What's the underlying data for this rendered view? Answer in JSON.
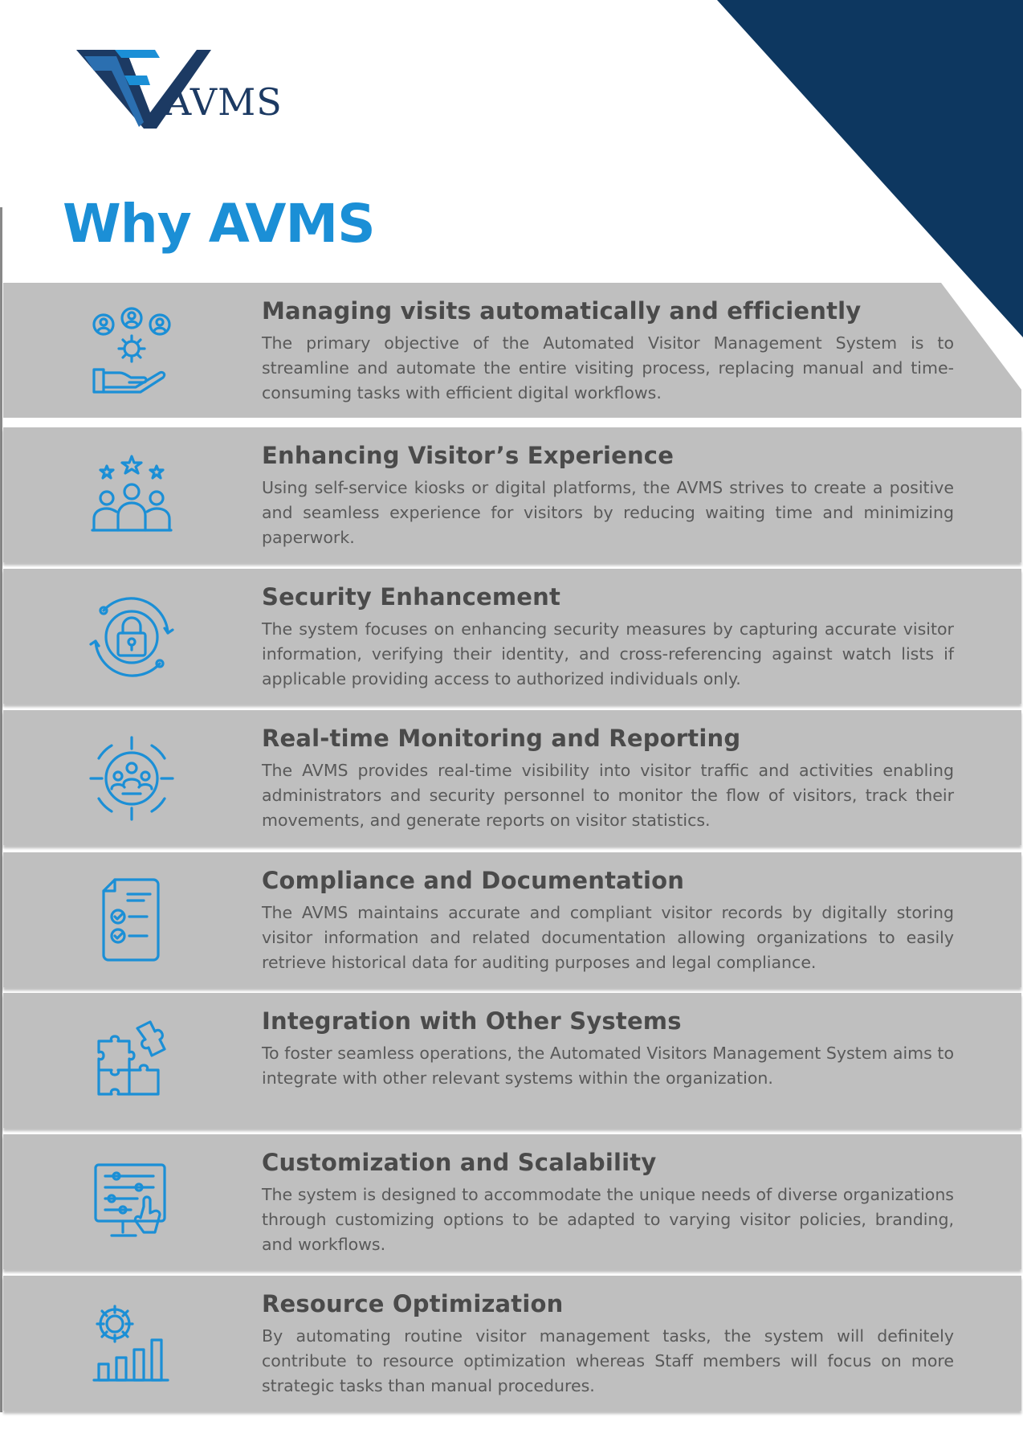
{
  "brand": {
    "logo_text": "AVMS",
    "colors": {
      "navy": "#0d3760",
      "accent_blue": "#1b8fd6",
      "panel_gray": "#bfbfbf"
    }
  },
  "page": {
    "title": "Why AVMS"
  },
  "items": [
    {
      "icon": "users-gear-hand-icon",
      "title": "Managing visits automatically and efficiently",
      "text": "The primary objective of the Automated Visitor Management System is to streamline and automate the entire visiting process, replacing manual and time-consuming tasks with efficient digital workflows."
    },
    {
      "icon": "stars-people-icon",
      "title": "Enhancing Visitor’s Experience",
      "text": "Using self-service kiosks or digital platforms, the AVMS strives to create a positive and seamless experience for visitors by reducing waiting time and minimizing paperwork."
    },
    {
      "icon": "lock-cycle-icon",
      "title": "Security Enhancement",
      "text": "The system focuses on enhancing security measures by capturing accurate visitor information, verifying their identity, and cross-referencing against watch lists if applicable providing access to authorized individuals only."
    },
    {
      "icon": "target-people-icon",
      "title": "Real-time Monitoring and Reporting",
      "text": "The AVMS provides real-time visibility into visitor traffic and activities enabling administrators and security personnel to monitor the flow of visitors, track their movements, and generate reports on visitor statistics."
    },
    {
      "icon": "checklist-document-icon",
      "title": "Compliance and Documentation",
      "text": "The AVMS maintains accurate and compliant visitor records by digitally storing visitor information and related documentation allowing organizations to easily retrieve historical data for auditing purposes and legal compliance."
    },
    {
      "icon": "puzzle-icon",
      "title": "Integration with Other Systems",
      "text": "To foster seamless operations, the Automated Visitors Management System aims to integrate with other relevant systems within the organization."
    },
    {
      "icon": "sliders-touch-screen-icon",
      "title": "Customization and Scalability",
      "text": "The system is designed to accommodate the unique needs of diverse organizations through customizing options to be adapted to varying visitor policies, branding, and workflows."
    },
    {
      "icon": "gear-bar-chart-icon",
      "title": "Resource Optimization",
      "text": "By automating routine visitor management tasks, the system will definitely contribute to resource optimization whereas Staff members will focus on more strategic tasks than manual procedures."
    }
  ]
}
